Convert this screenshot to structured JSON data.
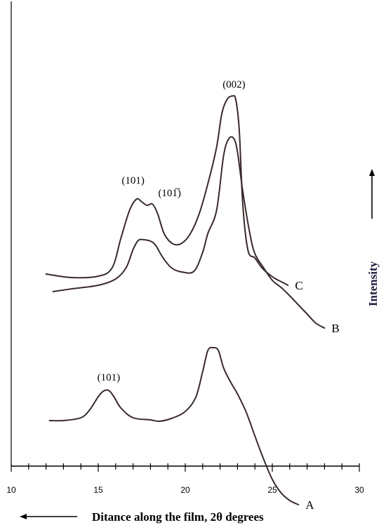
{
  "chart_data": {
    "type": "line",
    "xlabel": "Ditance along the film, 2θ degrees",
    "ylabel": "Intensity",
    "xlim": [
      10,
      30
    ],
    "x_ticks": [
      "10",
      "15",
      "20",
      "25",
      "30"
    ],
    "x_minor_step": 1,
    "x_axis_arrow": "left",
    "y_axis_arrow": "up",
    "y_ticks_shown": false,
    "grid": false,
    "series": [
      {
        "name": "A",
        "x": [
          12.2,
          13.0,
          14.0,
          14.5,
          15.0,
          15.3,
          15.6,
          15.9,
          16.3,
          17.0,
          18.0,
          18.5,
          19.2,
          20.0,
          20.6,
          21.0,
          21.3,
          21.6,
          21.9,
          22.2,
          22.6,
          23.0,
          23.5,
          24.0,
          24.5,
          25.0,
          25.5,
          26.0,
          26.5
        ],
        "values": [
          -40,
          -40,
          -36,
          -25,
          -6,
          2,
          3,
          -6,
          -22,
          -36,
          -39,
          -41,
          -37,
          -27,
          -7,
          30,
          60,
          64,
          60,
          35,
          15,
          -2,
          -28,
          -62,
          -95,
          -124,
          -143,
          -154,
          -160
        ]
      },
      {
        "name": "B",
        "x": [
          12.4,
          13.5,
          15.0,
          16.0,
          16.6,
          17.0,
          17.3,
          17.6,
          18.0,
          18.3,
          18.7,
          19.2,
          19.8,
          20.5,
          21.0,
          21.3,
          21.8,
          22.2,
          22.5,
          22.8,
          23.0,
          23.3,
          23.7,
          24.0,
          24.5,
          25.0,
          25.5,
          26.0,
          26.5,
          27.0,
          27.5,
          28.0
        ],
        "values": [
          144,
          148,
          153,
          162,
          178,
          204,
          217,
          218,
          216,
          210,
          193,
          178,
          172,
          173,
          200,
          227,
          260,
          338,
          362,
          362,
          343,
          288,
          228,
          198,
          178,
          160,
          150,
          138,
          125,
          112,
          99,
          92
        ]
      },
      {
        "name": "C",
        "x": [
          12.0,
          13.5,
          15.0,
          15.8,
          16.3,
          16.8,
          17.2,
          17.5,
          17.8,
          18.1,
          18.4,
          18.8,
          19.3,
          19.8,
          20.3,
          20.8,
          21.3,
          21.8,
          22.1,
          22.4,
          22.7,
          22.9,
          23.1,
          23.3,
          23.6,
          24.0,
          24.4,
          24.8,
          25.2,
          25.6,
          25.9
        ],
        "values": [
          169,
          164,
          166,
          178,
          220,
          260,
          276,
          272,
          267,
          269,
          256,
          226,
          212,
          213,
          227,
          255,
          298,
          350,
          398,
          418,
          423,
          418,
          375,
          270,
          203,
          192,
          178,
          169,
          162,
          157,
          153
        ]
      }
    ],
    "series_labels": [
      "A",
      "B",
      "C"
    ],
    "annotations": [
      {
        "text": "(002)",
        "x": 22.8,
        "y": 435
      },
      {
        "text": "(101)",
        "x": 17.0,
        "y": 298
      },
      {
        "text": "(101̅)",
        "x": 19.1,
        "y": 280
      },
      {
        "text": "(101)",
        "x": 15.6,
        "y": 17
      }
    ]
  }
}
